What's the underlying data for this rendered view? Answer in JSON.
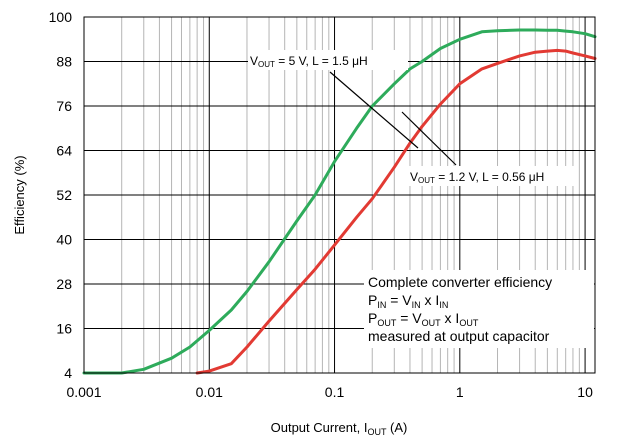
{
  "chart_data": {
    "type": "line",
    "xscale": "log",
    "xlim": [
      0.001,
      12
    ],
    "ylim": [
      4,
      100
    ],
    "xticks": [
      0.001,
      0.01,
      0.1,
      1,
      10
    ],
    "xtick_labels": [
      "0.001",
      "0.01",
      "0.1",
      "1",
      "10"
    ],
    "yticks": [
      4,
      16,
      28,
      40,
      52,
      64,
      76,
      88,
      100
    ],
    "ytick_labels": [
      "4",
      "16",
      "28",
      "40",
      "52",
      "64",
      "76",
      "88",
      "100"
    ],
    "xlabel": {
      "main": "Output Current, I",
      "sub": "OUT",
      "unit": " (A)"
    },
    "ylabel": "Efficiency (%)",
    "grid": true,
    "series": [
      {
        "color": "#2eab5b",
        "label": {
          "v": "V",
          "v_sub": "OUT",
          "text": " = 5 V, L = 1.5 μH"
        },
        "x": [
          0.001,
          0.002,
          0.003,
          0.005,
          0.007,
          0.01,
          0.015,
          0.02,
          0.03,
          0.05,
          0.07,
          0.1,
          0.15,
          0.2,
          0.3,
          0.4,
          0.5,
          0.7,
          1,
          1.5,
          2,
          3,
          4,
          5,
          6,
          7,
          8,
          10,
          12
        ],
        "y": [
          4,
          4,
          5,
          8,
          11,
          15.5,
          21,
          26,
          34,
          45,
          52,
          61,
          70,
          76,
          82,
          86,
          88,
          91.5,
          94,
          96,
          96.3,
          96.5,
          96.5,
          96.4,
          96.4,
          96.2,
          96,
          95.5,
          94.7
        ]
      },
      {
        "color": "#e23a33",
        "label": {
          "v": "V",
          "v_sub": "OUT",
          "text": " = 1.2 V, L = 0.56 μH"
        },
        "x": [
          0.008,
          0.01,
          0.015,
          0.02,
          0.03,
          0.05,
          0.07,
          0.1,
          0.15,
          0.2,
          0.3,
          0.4,
          0.5,
          0.7,
          1,
          1.5,
          2,
          3,
          4,
          5,
          6,
          7,
          8,
          10,
          12
        ],
        "y": [
          4,
          4.5,
          6.5,
          11,
          18,
          26.5,
          32,
          38.5,
          46,
          51,
          59.5,
          66,
          70.5,
          76.5,
          82,
          86,
          87.5,
          89.5,
          90.5,
          90.8,
          91,
          90.8,
          90.3,
          89.5,
          88.8
        ]
      }
    ],
    "annotation": {
      "line1": "Complete converter efficiency",
      "pin": {
        "p": "P",
        "p_sub": "IN",
        "eq": " = V",
        "v_sub": "IN",
        "x": " x I",
        "i_sub": "IN"
      },
      "pout": {
        "p": "P",
        "p_sub": "OUT",
        "eq": " = V",
        "v_sub": "OUT",
        "x": " x I",
        "i_sub": "OUT"
      },
      "line4": "measured at output capacitor"
    }
  }
}
